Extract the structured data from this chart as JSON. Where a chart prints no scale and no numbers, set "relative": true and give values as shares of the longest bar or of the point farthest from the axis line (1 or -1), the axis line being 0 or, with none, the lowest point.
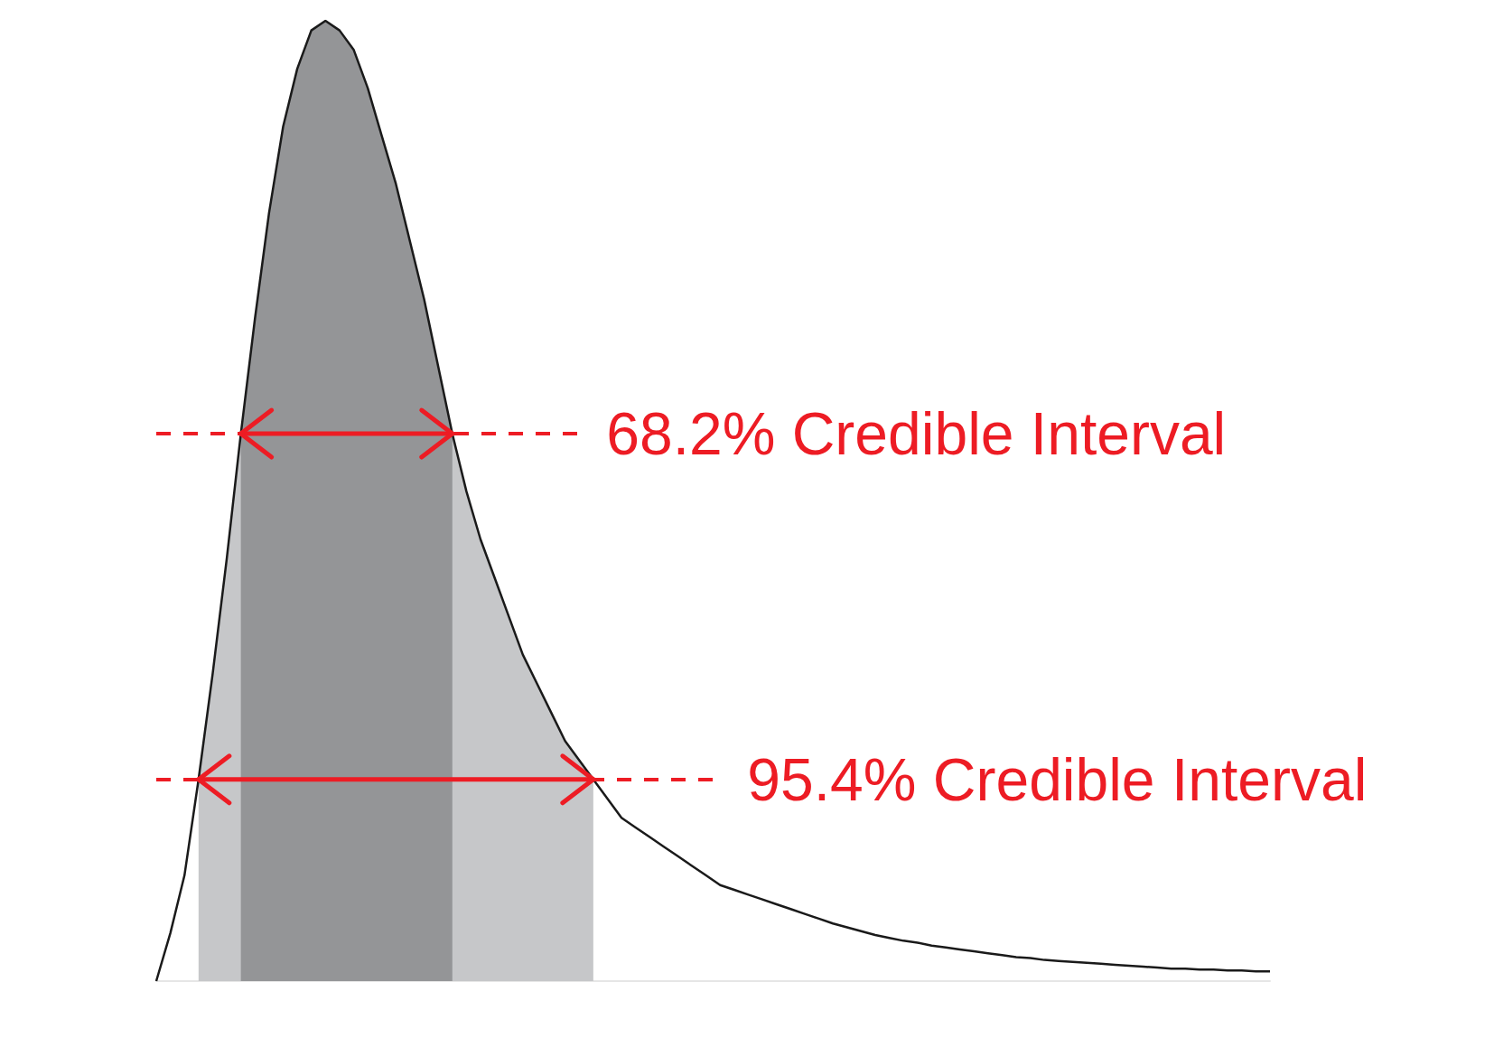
{
  "chart_data": {
    "type": "line",
    "relative": true,
    "grid": false,
    "categories": [
      null,
      null,
      null,
      null,
      null,
      null,
      null,
      null,
      null,
      null,
      null,
      null,
      null,
      null,
      null,
      null,
      null,
      null,
      null,
      null,
      null,
      null,
      null,
      null,
      null,
      null,
      null,
      null,
      null,
      null,
      null,
      null,
      null,
      null,
      null,
      null,
      null,
      null,
      null,
      null,
      null,
      null,
      null,
      null,
      null,
      null,
      null,
      null,
      null,
      null,
      null,
      null,
      null,
      null,
      null,
      null,
      null,
      null,
      null,
      null,
      null,
      null,
      null,
      null,
      null,
      null,
      null,
      null,
      null,
      null,
      null,
      null,
      null,
      null,
      null,
      null,
      null,
      null,
      null,
      null
    ],
    "series": [
      {
        "type": "area",
        "color": "#c6c7c9",
        "values": [
          null,
          null,
          null,
          0.21,
          0.32,
          0.44,
          0.57,
          0.69,
          0.8,
          0.89,
          0.95,
          0.99,
          1.0,
          0.99,
          0.97,
          0.93,
          0.88,
          0.83,
          0.77,
          0.71,
          0.64,
          0.57,
          0.51,
          0.46,
          0.42,
          0.38,
          0.34,
          0.31,
          0.28,
          0.25,
          0.23,
          0.21,
          null,
          null,
          null,
          null,
          null,
          null,
          null,
          null,
          null,
          null,
          null,
          null,
          null,
          null,
          null,
          null,
          null,
          null,
          null,
          null,
          null,
          null,
          null,
          null,
          null,
          null,
          null,
          null,
          null,
          null,
          null,
          null,
          null,
          null,
          null,
          null,
          null,
          null,
          null,
          null,
          null,
          null,
          null,
          null,
          null,
          null,
          null,
          null
        ]
      },
      {
        "type": "area",
        "color": "#949597",
        "values": [
          null,
          null,
          null,
          null,
          null,
          null,
          0.57,
          0.69,
          0.8,
          0.89,
          0.95,
          0.99,
          1.0,
          0.99,
          0.97,
          0.93,
          0.88,
          0.83,
          0.77,
          0.71,
          0.64,
          0.57,
          null,
          null,
          null,
          null,
          null,
          null,
          null,
          null,
          null,
          null,
          null,
          null,
          null,
          null,
          null,
          null,
          null,
          null,
          null,
          null,
          null,
          null,
          null,
          null,
          null,
          null,
          null,
          null,
          null,
          null,
          null,
          null,
          null,
          null,
          null,
          null,
          null,
          null,
          null,
          null,
          null,
          null,
          null,
          null,
          null,
          null,
          null,
          null,
          null,
          null,
          null,
          null,
          null,
          null,
          null,
          null,
          null,
          null
        ]
      },
      {
        "color": "#1a1a1a",
        "values": [
          0.0,
          0.05,
          0.11,
          0.21,
          0.32,
          0.44,
          0.57,
          0.69,
          0.8,
          0.89,
          0.95,
          0.99,
          1.0,
          0.99,
          0.97,
          0.93,
          0.88,
          0.83,
          0.77,
          0.71,
          0.64,
          0.57,
          0.51,
          0.46,
          0.42,
          0.38,
          0.34,
          0.31,
          0.28,
          0.25,
          0.23,
          0.21,
          0.19,
          0.17,
          0.16,
          0.15,
          0.14,
          0.13,
          0.12,
          0.11,
          0.1,
          0.095,
          0.09,
          0.085,
          0.08,
          0.075,
          0.07,
          0.065,
          0.06,
          0.056,
          0.052,
          0.048,
          0.045,
          0.042,
          0.04,
          0.037,
          0.035,
          0.033,
          0.031,
          0.029,
          0.027,
          0.025,
          0.024,
          0.022,
          0.021,
          0.02,
          0.019,
          0.018,
          0.017,
          0.016,
          0.015,
          0.014,
          0.013,
          0.013,
          0.012,
          0.012,
          0.011,
          0.011,
          0.01,
          0.01
        ]
      }
    ],
    "ref_lines": [
      {
        "axis": "y",
        "value": 0.57,
        "label": "68.2% Credible Interval",
        "color": "#ed1c24",
        "line_style": "dashed"
      },
      {
        "axis": "y",
        "value": 0.21,
        "label": "95.4% Credible Interval",
        "color": "#ed1c24",
        "line_style": "dashed"
      }
    ]
  }
}
